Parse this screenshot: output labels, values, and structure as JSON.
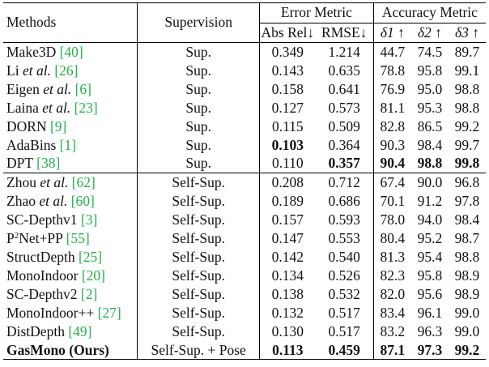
{
  "header": {
    "methods": "Methods",
    "supervision": "Supervision",
    "error_group": "Error Metric",
    "accuracy_group": "Accuracy Metric",
    "abs_rel": "Abs Rel↓",
    "rmse": "RMSE↓",
    "d1": "δ1 ↑",
    "d2": "δ2 ↑",
    "d3": "δ3 ↑"
  },
  "rows_sup": [
    {
      "name": "Make3D",
      "etal": "",
      "cite": "[40]",
      "sup": "Sup.",
      "abs": "0.349",
      "rmse": "1.214",
      "d1": "44.7",
      "d2": "74.5",
      "d3": "89.7"
    },
    {
      "name": "Li",
      "etal": "et al.",
      "cite": "[26]",
      "sup": "Sup.",
      "abs": "0.143",
      "rmse": "0.635",
      "d1": "78.8",
      "d2": "95.8",
      "d3": "99.1"
    },
    {
      "name": "Eigen",
      "etal": "et al.",
      "cite": "[6]",
      "sup": "Sup.",
      "abs": "0.158",
      "rmse": "0.641",
      "d1": "76.9",
      "d2": "95.0",
      "d3": "98.8"
    },
    {
      "name": "Laina",
      "etal": "et al.",
      "cite": "[23]",
      "sup": "Sup.",
      "abs": "0.127",
      "rmse": "0.573",
      "d1": "81.1",
      "d2": "95.3",
      "d3": "98.8"
    },
    {
      "name": "DORN",
      "etal": "",
      "cite": "[9]",
      "sup": "Sup.",
      "abs": "0.115",
      "rmse": "0.509",
      "d1": "82.8",
      "d2": "86.5",
      "d3": "99.2"
    },
    {
      "name": "AdaBins",
      "etal": "",
      "cite": "[1]",
      "sup": "Sup.",
      "abs": "0.103",
      "rmse": "0.364",
      "d1": "90.3",
      "d2": "98.4",
      "d3": "99.7"
    },
    {
      "name": "DPT",
      "etal": "",
      "cite": "[38]",
      "sup": "Sup.",
      "abs": "0.110",
      "rmse": "0.357",
      "d1": "90.4",
      "d2": "98.8",
      "d3": "99.8"
    }
  ],
  "rows_self": [
    {
      "name": "Zhou",
      "etal": "et al.",
      "cite": "[62]",
      "sup": "Self-Sup.",
      "abs": "0.208",
      "rmse": "0.712",
      "d1": "67.4",
      "d2": "90.0",
      "d3": "96.8"
    },
    {
      "name": "Zhao",
      "etal": "et al.",
      "cite": "[60]",
      "sup": "Self-Sup.",
      "abs": "0.189",
      "rmse": "0.686",
      "d1": "70.1",
      "d2": "91.2",
      "d3": "97.8"
    },
    {
      "name": "SC-Depthv1",
      "etal": "",
      "cite": "[3]",
      "sup": "Self-Sup.",
      "abs": "0.157",
      "rmse": "0.593",
      "d1": "78.0",
      "d2": "94.0",
      "d3": "98.4"
    },
    {
      "name": "P",
      "sup2": "2",
      "name2": "Net+PP",
      "etal": "",
      "cite": "[55]",
      "sup": "Self-Sup.",
      "abs": "0.147",
      "rmse": "0.553",
      "d1": "80.4",
      "d2": "95.2",
      "d3": "98.7"
    },
    {
      "name": "StructDepth",
      "etal": "",
      "cite": "[25]",
      "sup": "Self-Sup.",
      "abs": "0.142",
      "rmse": "0.540",
      "d1": "81.3",
      "d2": "95.4",
      "d3": "98.8"
    },
    {
      "name": "MonoIndoor",
      "etal": "",
      "cite": "[20]",
      "sup": "Self-Sup.",
      "abs": "0.134",
      "rmse": "0.526",
      "d1": "82.3",
      "d2": "95.8",
      "d3": "98.9"
    },
    {
      "name": "SC-Depthv2",
      "etal": "",
      "cite": "[2]",
      "sup": "Self-Sup.",
      "abs": "0.138",
      "rmse": "0.532",
      "d1": "82.0",
      "d2": "95.6",
      "d3": "98.9"
    },
    {
      "name": "MonoIndoor++",
      "etal": "",
      "cite": "[27]",
      "sup": "Self-Sup.",
      "abs": "0.132",
      "rmse": "0.517",
      "d1": "83.4",
      "d2": "96.1",
      "d3": "99.0"
    },
    {
      "name": "DistDepth",
      "etal": "",
      "cite": "[49]",
      "sup": "Self-Sup.",
      "abs": "0.130",
      "rmse": "0.517",
      "d1": "83.2",
      "d2": "96.3",
      "d3": "99.0"
    },
    {
      "name": "GasMono (Ours)",
      "etal": "",
      "cite": "",
      "sup": "Self-Sup. + Pose",
      "abs": "0.113",
      "rmse": "0.459",
      "d1": "87.1",
      "d2": "97.3",
      "d3": "99.2"
    }
  ],
  "colors": {
    "citation": "#22b14c",
    "text": "#111111"
  }
}
